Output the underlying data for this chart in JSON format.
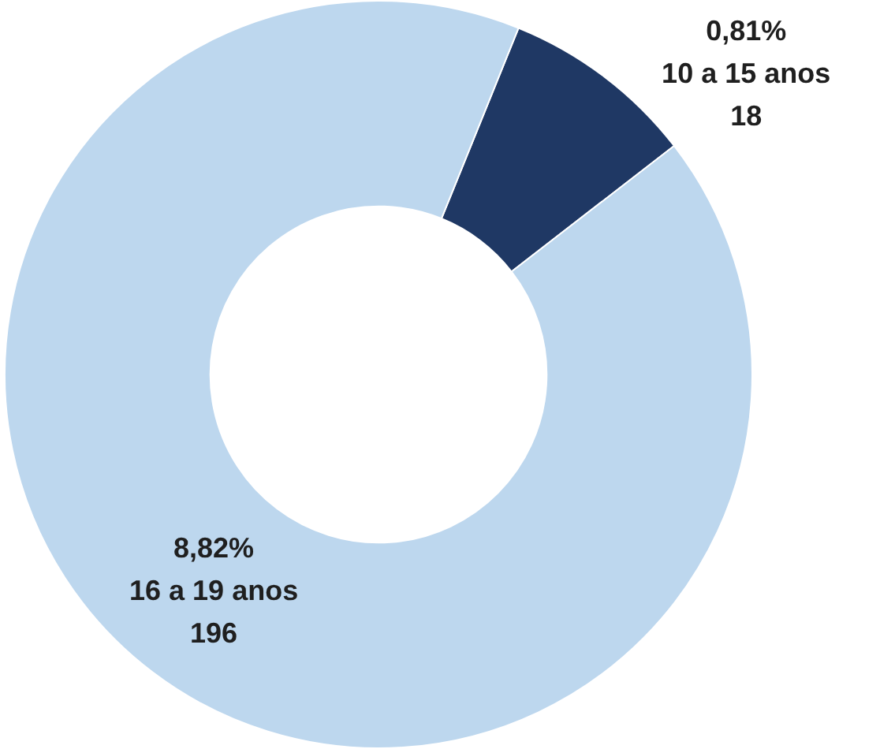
{
  "chart_data": {
    "type": "donut",
    "categories": [
      "10 a 15 anos",
      "16 a 19 anos"
    ],
    "values": [
      18,
      196
    ],
    "colors": [
      "#1f3864",
      "#bdd7ee"
    ],
    "annotations": [
      "0,81%",
      "8,82%"
    ],
    "data_labels": true,
    "legend": false
  }
}
